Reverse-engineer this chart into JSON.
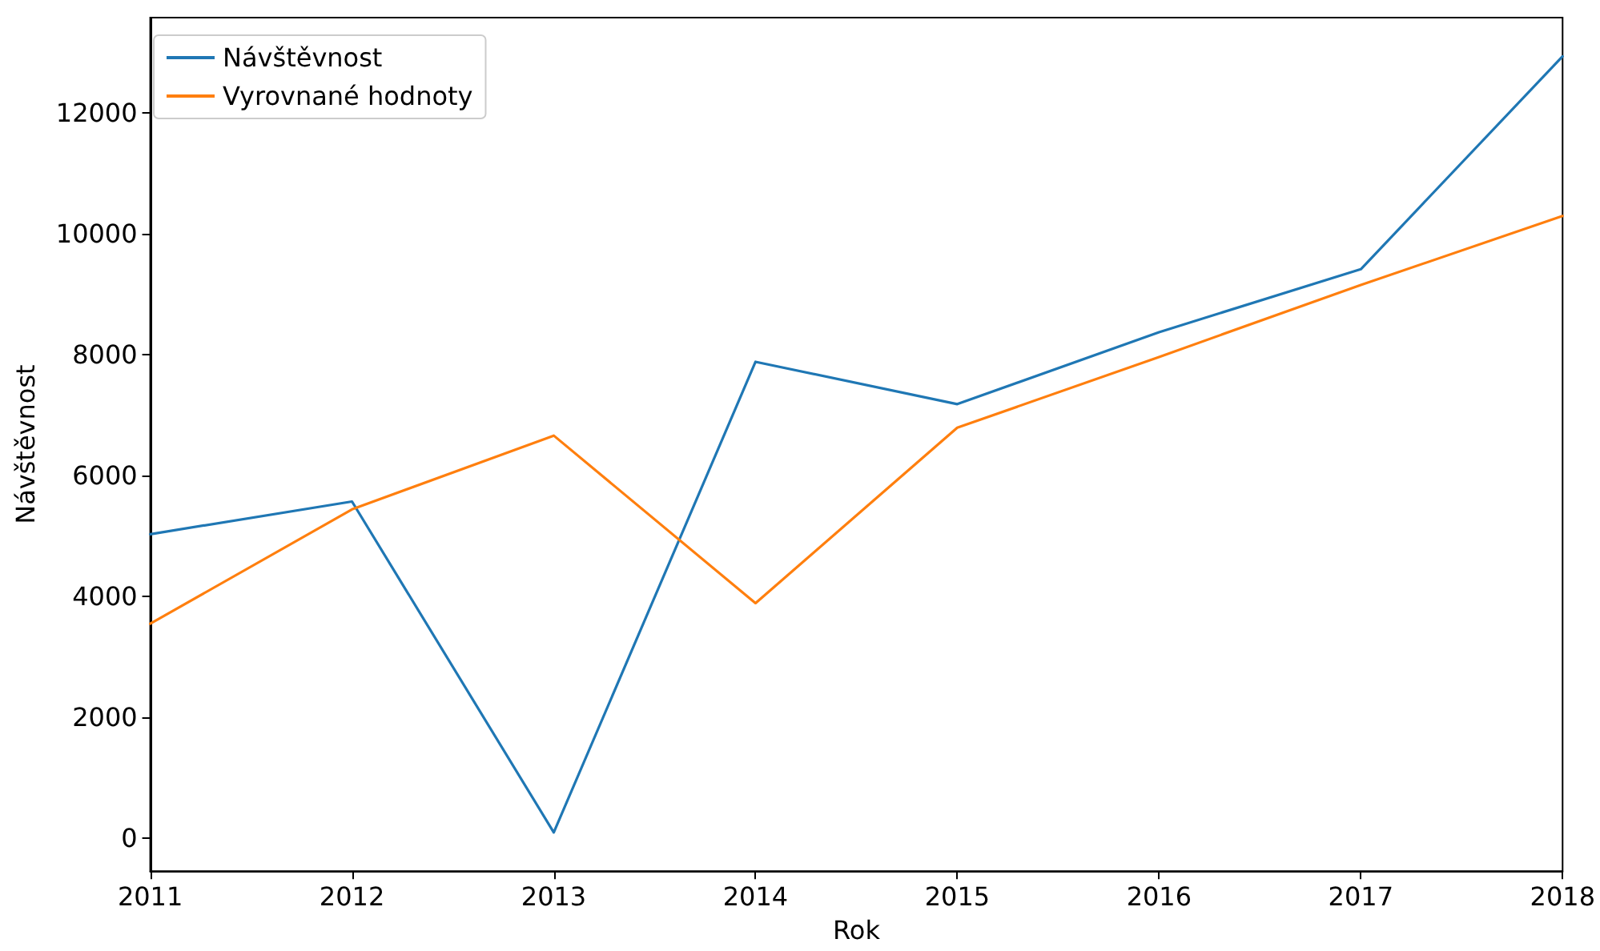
{
  "chart_data": {
    "type": "line",
    "xlabel": "Rok",
    "ylabel": "Návštěvnost",
    "x": [
      2011,
      2012,
      2013,
      2014,
      2015,
      2016,
      2017,
      2018
    ],
    "series": [
      {
        "name": "Návštěvnost",
        "color": "#1f77b4",
        "values": [
          5030,
          5570,
          100,
          7880,
          7180,
          8370,
          9410,
          12930
        ]
      },
      {
        "name": "Vyrovnané hodnoty",
        "color": "#ff7f0e",
        "values": [
          3550,
          5440,
          6660,
          3890,
          6790,
          7960,
          9150,
          10290
        ]
      }
    ],
    "xlim": [
      2011,
      2018
    ],
    "xticks": [
      2011,
      2012,
      2013,
      2014,
      2015,
      2016,
      2017,
      2018
    ],
    "ylim": [
      -540,
      13570
    ],
    "yticks": [
      0,
      2000,
      4000,
      6000,
      8000,
      10000,
      12000
    ],
    "grid": false,
    "legend": "top left",
    "marker": "none",
    "line_style": "solid"
  }
}
